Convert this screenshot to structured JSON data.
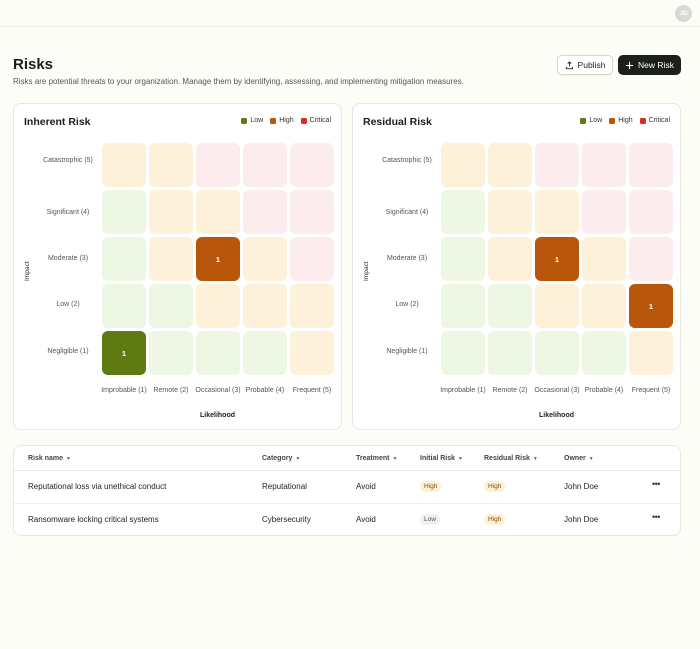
{
  "header": {
    "avatar_initials": "JD"
  },
  "page": {
    "title": "Risks",
    "subtitle": "Risks are potential threats to your organization. Manage them by identifying, assessing, and implementing mitigation measures."
  },
  "actions": {
    "publish_label": "Publish",
    "new_risk_label": "New Risk"
  },
  "legend": [
    {
      "label": "Low",
      "color": "#5f7a12"
    },
    {
      "label": "High",
      "color": "#b8570b"
    },
    {
      "label": "Critical",
      "color": "#d92d20"
    }
  ],
  "matrix_axes": {
    "y_label": "Impact",
    "x_label": "Likelihood",
    "rows": [
      "Catastrophic (5)",
      "Significant (4)",
      "Moderate (3)",
      "Low (2)",
      "Negligible (1)"
    ],
    "cols": [
      "Improbable (1)",
      "Remote (2)",
      "Occasional (3)",
      "Probable (4)",
      "Frequent (5)"
    ]
  },
  "cell_colors": {
    "green": "#eef7e3",
    "yellow": "#fdf2d9",
    "pink": "#fdecee",
    "low_filled": "#5f7a12",
    "high_filled": "#b8570b"
  },
  "matrices": [
    {
      "title": "Inherent Risk",
      "grid": [
        [
          "yellow",
          "yellow",
          "pink",
          "pink",
          "pink"
        ],
        [
          "green",
          "yellow",
          "yellow",
          "pink",
          "pink"
        ],
        [
          "green",
          "yellow",
          "high_filled",
          "yellow",
          "pink"
        ],
        [
          "green",
          "green",
          "yellow",
          "yellow",
          "yellow"
        ],
        [
          "low_filled",
          "green",
          "green",
          "green",
          "yellow"
        ]
      ],
      "counts": [
        [
          "",
          "",
          "",
          "",
          ""
        ],
        [
          "",
          "",
          "",
          "",
          ""
        ],
        [
          "",
          "",
          "1",
          "",
          ""
        ],
        [
          "",
          "",
          "",
          "",
          ""
        ],
        [
          "1",
          "",
          "",
          "",
          ""
        ]
      ]
    },
    {
      "title": "Residual Risk",
      "grid": [
        [
          "yellow",
          "yellow",
          "pink",
          "pink",
          "pink"
        ],
        [
          "green",
          "yellow",
          "yellow",
          "pink",
          "pink"
        ],
        [
          "green",
          "yellow",
          "high_filled",
          "yellow",
          "pink"
        ],
        [
          "green",
          "green",
          "yellow",
          "yellow",
          "high_filled"
        ],
        [
          "green",
          "green",
          "green",
          "green",
          "yellow"
        ]
      ],
      "counts": [
        [
          "",
          "",
          "",
          "",
          ""
        ],
        [
          "",
          "",
          "",
          "",
          ""
        ],
        [
          "",
          "",
          "1",
          "",
          ""
        ],
        [
          "",
          "",
          "",
          "",
          "1"
        ],
        [
          "",
          "",
          "",
          "",
          ""
        ]
      ]
    }
  ],
  "table": {
    "columns": [
      "Risk name",
      "Category",
      "Treatment",
      "Initial Risk",
      "Residual Risk",
      "Owner"
    ],
    "rows": [
      {
        "name": "Reputational loss via unethical conduct",
        "category": "Reputational",
        "treatment": "Avoid",
        "initial": "High",
        "residual": "High",
        "owner": "John Doe"
      },
      {
        "name": "Ransomware locking critical systems",
        "category": "Cybersecurity",
        "treatment": "Avoid",
        "initial": "Low",
        "residual": "High",
        "owner": "John Doe"
      }
    ]
  }
}
